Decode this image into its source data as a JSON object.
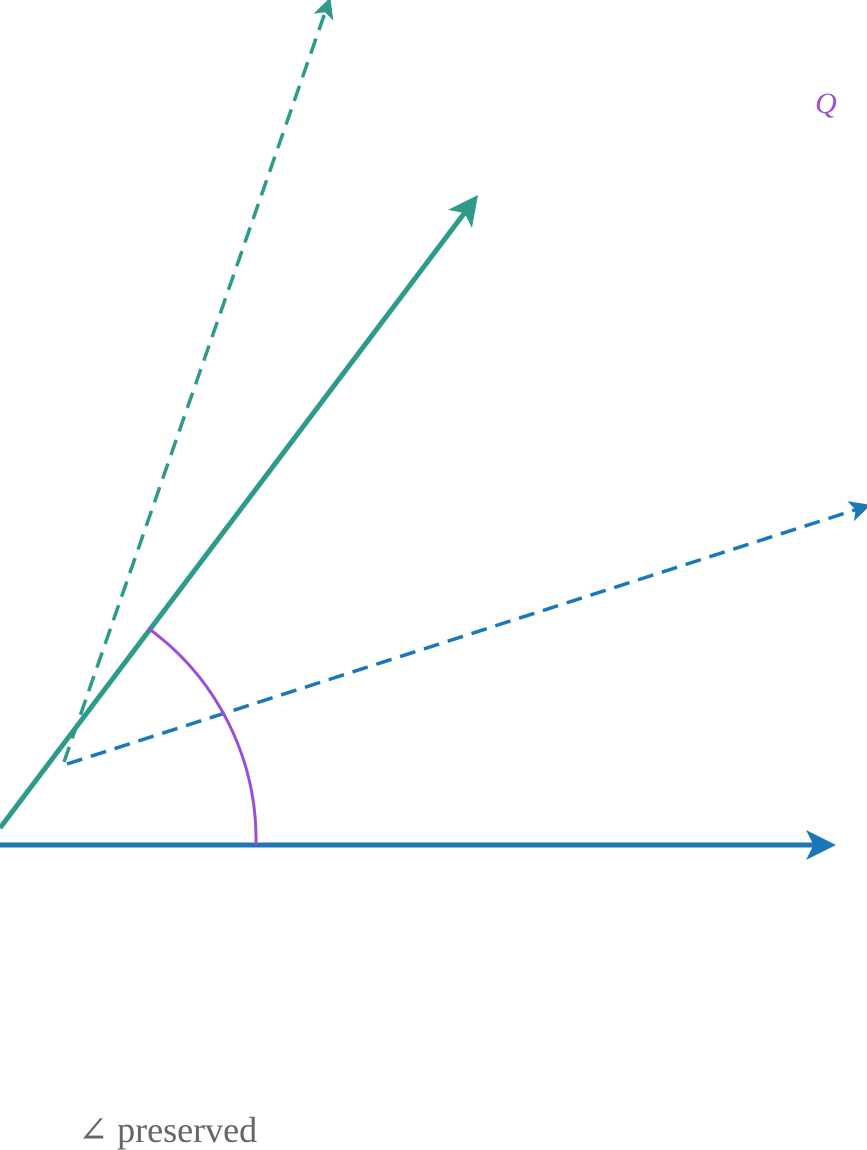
{
  "labels": {
    "point": "Q",
    "caption": "∠ preserved"
  }
}
